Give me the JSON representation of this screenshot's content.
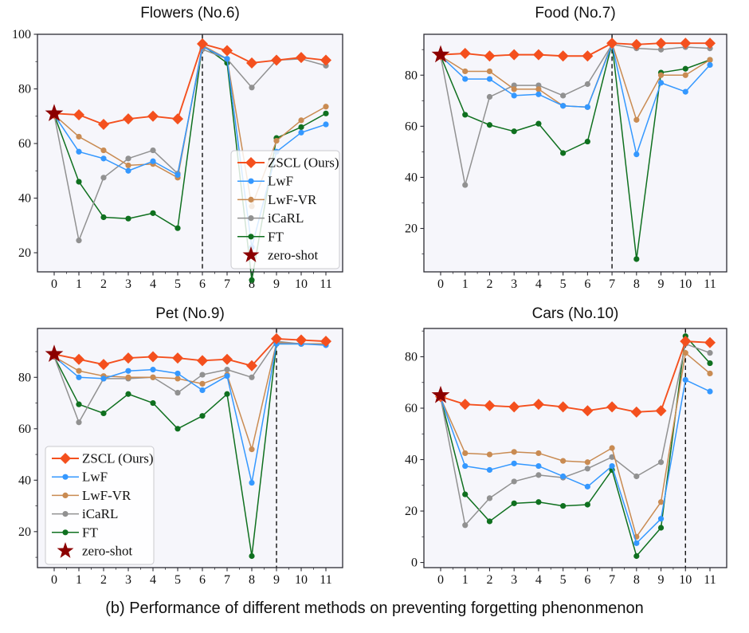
{
  "caption": "(b) Performance of different methods on preventing forgetting phenonmenon",
  "colors": {
    "zscl": "#F4501E",
    "lwf": "#3498FF",
    "lwfvr": "#C98B52",
    "icarl": "#919191",
    "ft": "#0F701F",
    "zero_shot": "#8B0000",
    "plot_background": "#F6F6FB",
    "axis": "#2B2B33",
    "task_line": "#111111"
  },
  "chart_data": [
    {
      "type": "line",
      "title": "Flowers (No.6)",
      "x": [
        0,
        1,
        2,
        3,
        4,
        5,
        6,
        7,
        8,
        9,
        10,
        11
      ],
      "xticks": [
        0,
        1,
        2,
        3,
        4,
        5,
        6,
        7,
        8,
        9,
        10,
        11
      ],
      "yticks": [
        20,
        40,
        60,
        80,
        100
      ],
      "ylim": [
        13,
        100
      ],
      "task_boundary_x": 6,
      "legend": {
        "show": true,
        "position": "lower right"
      },
      "series": [
        {
          "name": "ZSCL (Ours)",
          "color": "#F4501E",
          "marker": "diamond",
          "values": [
            71,
            70.5,
            67,
            69,
            70,
            69,
            96.5,
            94,
            89.5,
            90.5,
            91.5,
            90.5
          ]
        },
        {
          "name": "LwF",
          "color": "#3498FF",
          "marker": "circle",
          "values": [
            70.5,
            57,
            54.5,
            50,
            53.5,
            48.5,
            95.5,
            91,
            22,
            57,
            64,
            67
          ]
        },
        {
          "name": "LwF-VR",
          "color": "#C98B52",
          "marker": "circle",
          "values": [
            70.5,
            62.5,
            57.5,
            52,
            52.5,
            47.5,
            96,
            91,
            37,
            61,
            68.5,
            73.5
          ]
        },
        {
          "name": "iCaRL",
          "color": "#919191",
          "marker": "circle",
          "values": [
            70.5,
            24.5,
            47.5,
            54.5,
            57.5,
            49,
            94.5,
            91,
            80.5,
            90.5,
            91,
            88.5
          ]
        },
        {
          "name": "FT",
          "color": "#0F701F",
          "marker": "circle",
          "values": [
            70.5,
            46,
            33,
            32.5,
            34.5,
            29,
            96,
            89.5,
            10,
            62,
            66,
            71
          ]
        }
      ],
      "zero_shot": {
        "label": "zero-shot",
        "color": "#8B0000",
        "x": 0,
        "value": 71
      }
    },
    {
      "type": "line",
      "title": "Food (No.7)",
      "x": [
        0,
        1,
        2,
        3,
        4,
        5,
        6,
        7,
        8,
        9,
        10,
        11
      ],
      "xticks": [
        0,
        1,
        2,
        3,
        4,
        5,
        6,
        7,
        8,
        9,
        10,
        11
      ],
      "yticks": [
        20,
        40,
        60,
        80
      ],
      "ylim": [
        3,
        96
      ],
      "task_boundary_x": 7,
      "legend": {
        "show": false,
        "position": ""
      },
      "series": [
        {
          "name": "ZSCL (Ours)",
          "color": "#F4501E",
          "marker": "diamond",
          "values": [
            88,
            88.5,
            87.5,
            88,
            88,
            87.5,
            87.5,
            92.5,
            92,
            92.5,
            92.5,
            92.5
          ]
        },
        {
          "name": "LwF",
          "color": "#3498FF",
          "marker": "circle",
          "values": [
            87.5,
            78.5,
            78.5,
            72,
            72.5,
            68,
            67.5,
            92,
            49,
            77,
            73.5,
            84
          ]
        },
        {
          "name": "LwF-VR",
          "color": "#C98B52",
          "marker": "circle",
          "values": [
            87.5,
            81.5,
            81.5,
            74.5,
            74.5,
            68,
            67.5,
            92.5,
            62.5,
            80,
            80,
            86
          ]
        },
        {
          "name": "iCaRL",
          "color": "#919191",
          "marker": "circle",
          "values": [
            87.5,
            37,
            71.5,
            76,
            76,
            72,
            76.5,
            92,
            90.5,
            90,
            91,
            90.5
          ]
        },
        {
          "name": "FT",
          "color": "#0F701F",
          "marker": "circle",
          "values": [
            87.5,
            64.5,
            60.5,
            58,
            61,
            49.5,
            54,
            92.5,
            8,
            81,
            82.5,
            86
          ]
        }
      ],
      "zero_shot": {
        "label": "zero-shot",
        "color": "#8B0000",
        "x": 0,
        "value": 88
      }
    },
    {
      "type": "line",
      "title": "Pet (No.9)",
      "x": [
        0,
        1,
        2,
        3,
        4,
        5,
        6,
        7,
        8,
        9,
        10,
        11
      ],
      "xticks": [
        0,
        1,
        2,
        3,
        4,
        5,
        6,
        7,
        8,
        9,
        10,
        11
      ],
      "yticks": [
        20,
        40,
        60,
        80
      ],
      "ylim": [
        6,
        99
      ],
      "task_boundary_x": 9,
      "legend": {
        "show": true,
        "position": "lower left"
      },
      "series": [
        {
          "name": "ZSCL (Ours)",
          "color": "#F4501E",
          "marker": "diamond",
          "values": [
            89,
            87,
            85,
            87.5,
            88,
            87.5,
            86.5,
            87,
            84.5,
            95,
            94.5,
            94
          ]
        },
        {
          "name": "LwF",
          "color": "#3498FF",
          "marker": "circle",
          "values": [
            88,
            80,
            79.5,
            82.5,
            83,
            81.5,
            75,
            80.5,
            39,
            93,
            93,
            92.5
          ]
        },
        {
          "name": "LwF-VR",
          "color": "#C98B52",
          "marker": "circle",
          "values": [
            88,
            82.5,
            80.5,
            80,
            80,
            79.5,
            77.5,
            81,
            52,
            93.5,
            93,
            93
          ]
        },
        {
          "name": "iCaRL",
          "color": "#919191",
          "marker": "circle",
          "values": [
            88,
            62.5,
            79.5,
            79.5,
            80,
            74,
            81,
            83,
            80,
            94,
            93,
            93
          ]
        },
        {
          "name": "FT",
          "color": "#0F701F",
          "marker": "circle",
          "values": [
            88,
            69.5,
            66,
            73.5,
            70,
            60,
            65,
            73.5,
            10.5,
            93,
            93,
            93
          ]
        }
      ],
      "zero_shot": {
        "label": "zero-shot",
        "color": "#8B0000",
        "x": 0,
        "value": 89
      }
    },
    {
      "type": "line",
      "title": "Cars (No.10)",
      "x": [
        0,
        1,
        2,
        3,
        4,
        5,
        6,
        7,
        8,
        9,
        10,
        11
      ],
      "xticks": [
        0,
        1,
        2,
        3,
        4,
        5,
        6,
        7,
        8,
        9,
        10,
        11
      ],
      "yticks": [
        0,
        20,
        40,
        60,
        80
      ],
      "ylim": [
        -2,
        91
      ],
      "task_boundary_x": 10,
      "legend": {
        "show": false,
        "position": ""
      },
      "series": [
        {
          "name": "ZSCL (Ours)",
          "color": "#F4501E",
          "marker": "diamond",
          "values": [
            64.5,
            61.5,
            61,
            60.5,
            61.5,
            60.5,
            59,
            60.5,
            58.5,
            59,
            86,
            85.5
          ]
        },
        {
          "name": "LwF",
          "color": "#3498FF",
          "marker": "circle",
          "values": [
            64,
            37.5,
            36,
            38.5,
            37.5,
            33.5,
            29.5,
            37.5,
            7.5,
            17,
            71,
            66.5
          ]
        },
        {
          "name": "LwF-VR",
          "color": "#C98B52",
          "marker": "circle",
          "values": [
            64,
            42.5,
            42,
            43,
            42.5,
            39.5,
            39,
            44.5,
            10,
            23.5,
            81.5,
            73.5
          ]
        },
        {
          "name": "iCaRL",
          "color": "#919191",
          "marker": "circle",
          "values": [
            64,
            14.5,
            25,
            31.5,
            34,
            33,
            36.5,
            41,
            33.5,
            39,
            85,
            81.5
          ]
        },
        {
          "name": "FT",
          "color": "#0F701F",
          "marker": "circle",
          "values": [
            64,
            26.5,
            16,
            23,
            23.5,
            22,
            22.5,
            36,
            2.5,
            13.5,
            88,
            77.5
          ]
        }
      ],
      "zero_shot": {
        "label": "zero-shot",
        "color": "#8B0000",
        "x": 0,
        "value": 65
      }
    }
  ]
}
